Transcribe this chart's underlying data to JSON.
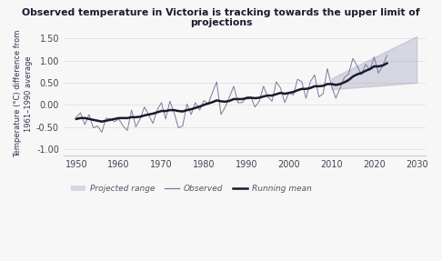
{
  "title": "Observed temperature in Victoria is tracking towards the upper limit of projections",
  "ylabel": "Temperature (°C) difference from\n1961–1990 average",
  "ylim": [
    -1.15,
    1.65
  ],
  "xlim": [
    1947,
    2032
  ],
  "yticks": [
    -1.0,
    -0.5,
    0.0,
    0.5,
    1.0,
    1.5
  ],
  "xticks": [
    1950,
    1960,
    1970,
    1980,
    1990,
    2000,
    2010,
    2020,
    2030
  ],
  "background_color": "#f7f7f7",
  "observed_color": "#7a7a9a",
  "running_mean_color": "#1a1a2e",
  "projection_fill_color": "#9999bb",
  "observed_years": [
    1950,
    1951,
    1952,
    1953,
    1954,
    1955,
    1956,
    1957,
    1958,
    1959,
    1960,
    1961,
    1962,
    1963,
    1964,
    1965,
    1966,
    1967,
    1968,
    1969,
    1970,
    1971,
    1972,
    1973,
    1974,
    1975,
    1976,
    1977,
    1978,
    1979,
    1980,
    1981,
    1982,
    1983,
    1984,
    1985,
    1986,
    1987,
    1988,
    1989,
    1990,
    1991,
    1992,
    1993,
    1994,
    1995,
    1996,
    1997,
    1998,
    1999,
    2000,
    2001,
    2002,
    2003,
    2004,
    2005,
    2006,
    2007,
    2008,
    2009,
    2010,
    2011,
    2012,
    2013,
    2014,
    2015,
    2016,
    2017,
    2018,
    2019,
    2020,
    2021,
    2022,
    2023
  ],
  "observed_values": [
    -0.28,
    -0.18,
    -0.45,
    -0.22,
    -0.52,
    -0.48,
    -0.62,
    -0.3,
    -0.32,
    -0.38,
    -0.32,
    -0.48,
    -0.58,
    -0.12,
    -0.5,
    -0.32,
    -0.05,
    -0.22,
    -0.42,
    -0.12,
    0.05,
    -0.32,
    0.08,
    -0.18,
    -0.52,
    -0.48,
    0.02,
    -0.22,
    0.05,
    -0.12,
    0.1,
    0.02,
    0.28,
    0.52,
    -0.22,
    -0.05,
    0.18,
    0.42,
    0.05,
    0.05,
    0.18,
    0.18,
    -0.05,
    0.08,
    0.42,
    0.18,
    0.08,
    0.52,
    0.38,
    0.05,
    0.28,
    0.22,
    0.58,
    0.52,
    0.15,
    0.52,
    0.68,
    0.18,
    0.25,
    0.82,
    0.42,
    0.15,
    0.38,
    0.62,
    0.7,
    1.05,
    0.88,
    0.68,
    0.92,
    0.78,
    1.08,
    0.72,
    0.88,
    1.12
  ],
  "running_mean_years": [
    1950,
    1951,
    1952,
    1953,
    1954,
    1955,
    1956,
    1957,
    1958,
    1959,
    1960,
    1961,
    1962,
    1963,
    1964,
    1965,
    1966,
    1967,
    1968,
    1969,
    1970,
    1971,
    1972,
    1973,
    1974,
    1975,
    1976,
    1977,
    1978,
    1979,
    1980,
    1981,
    1982,
    1983,
    1984,
    1985,
    1986,
    1987,
    1988,
    1989,
    1990,
    1991,
    1992,
    1993,
    1994,
    1995,
    1996,
    1997,
    1998,
    1999,
    2000,
    2001,
    2002,
    2003,
    2004,
    2005,
    2006,
    2007,
    2008,
    2009,
    2010,
    2011,
    2012,
    2013,
    2014,
    2015,
    2016,
    2017,
    2018,
    2019,
    2020,
    2021,
    2022,
    2023
  ],
  "running_mean_values": [
    -0.32,
    -0.3,
    -0.3,
    -0.32,
    -0.34,
    -0.36,
    -0.38,
    -0.36,
    -0.34,
    -0.32,
    -0.3,
    -0.3,
    -0.3,
    -0.28,
    -0.28,
    -0.27,
    -0.24,
    -0.22,
    -0.2,
    -0.17,
    -0.14,
    -0.14,
    -0.12,
    -0.12,
    -0.14,
    -0.15,
    -0.12,
    -0.1,
    -0.07,
    -0.04,
    0.0,
    0.03,
    0.06,
    0.1,
    0.08,
    0.07,
    0.09,
    0.13,
    0.13,
    0.13,
    0.15,
    0.16,
    0.15,
    0.16,
    0.19,
    0.21,
    0.21,
    0.24,
    0.27,
    0.25,
    0.27,
    0.29,
    0.33,
    0.36,
    0.36,
    0.38,
    0.42,
    0.42,
    0.43,
    0.47,
    0.47,
    0.45,
    0.47,
    0.51,
    0.56,
    0.64,
    0.69,
    0.72,
    0.77,
    0.81,
    0.87,
    0.87,
    0.89,
    0.94
  ],
  "proj_years": [
    2010,
    2030
  ],
  "proj_lower": [
    0.35,
    0.5
  ],
  "proj_upper": [
    0.6,
    1.55
  ]
}
